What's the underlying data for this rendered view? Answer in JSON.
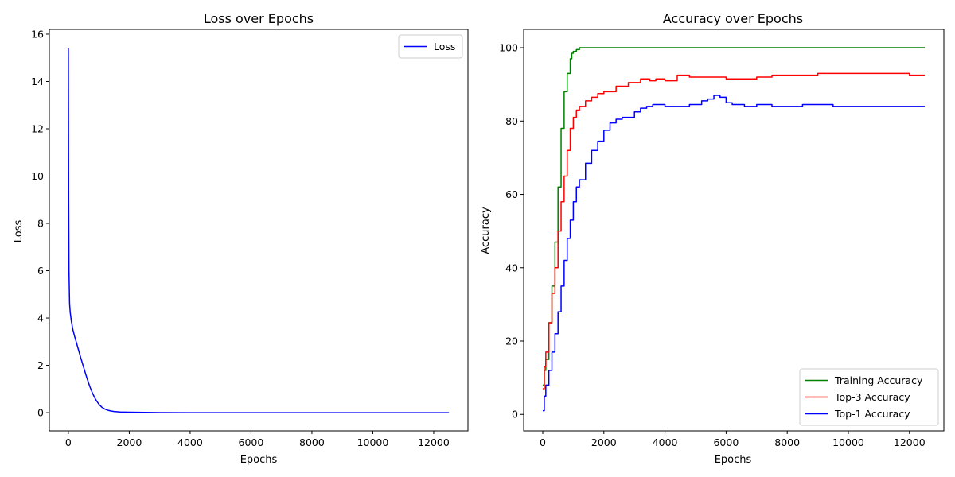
{
  "chart_data": [
    {
      "type": "line",
      "title": "Loss over Epochs",
      "xlabel": "Epochs",
      "ylabel": "Loss",
      "xlim": [
        -625,
        13125
      ],
      "ylim": [
        -0.77,
        16.2
      ],
      "xticks": [
        0,
        2000,
        4000,
        6000,
        8000,
        10000,
        12000
      ],
      "yticks": [
        0,
        2,
        4,
        6,
        8,
        10,
        12,
        14,
        16
      ],
      "grid": false,
      "legend": "upper right",
      "series": [
        {
          "name": "Loss",
          "color": "#0000ff",
          "x": [
            0,
            10,
            20,
            40,
            60,
            100,
            150,
            200,
            300,
            400,
            500,
            600,
            700,
            800,
            900,
            1000,
            1100,
            1200,
            1300,
            1400,
            1500,
            1700,
            2000,
            2500,
            3000,
            4000,
            6000,
            8000,
            10000,
            12500
          ],
          "y": [
            15.4,
            9.0,
            6.0,
            4.6,
            4.25,
            3.85,
            3.5,
            3.25,
            2.8,
            2.35,
            1.92,
            1.5,
            1.12,
            0.8,
            0.55,
            0.36,
            0.23,
            0.15,
            0.1,
            0.07,
            0.05,
            0.03,
            0.02,
            0.01,
            0.005,
            0.0,
            0.0,
            0.0,
            0.0,
            0.0
          ]
        }
      ]
    },
    {
      "type": "line",
      "title": "Accuracy over Epochs",
      "xlabel": "Epochs",
      "ylabel": "Accuracy",
      "xlim": [
        -625,
        13125
      ],
      "ylim": [
        -4.5,
        105
      ],
      "xticks": [
        0,
        2000,
        4000,
        6000,
        8000,
        10000,
        12000
      ],
      "yticks": [
        0,
        20,
        40,
        60,
        80,
        100
      ],
      "grid": false,
      "legend": "lower right",
      "series": [
        {
          "name": "Training Accuracy",
          "color": "#008000",
          "x": [
            0,
            50,
            100,
            200,
            300,
            400,
            500,
            600,
            700,
            800,
            900,
            950,
            1000,
            1100,
            1200,
            1300,
            2000,
            4000,
            8000,
            12500
          ],
          "y": [
            8,
            12,
            15,
            25,
            35,
            47,
            62,
            78,
            88,
            93,
            97,
            98.5,
            99,
            99.5,
            100,
            100,
            100,
            100,
            100,
            100
          ]
        },
        {
          "name": "Top-3 Accuracy",
          "color": "#ff0000",
          "x": [
            0,
            50,
            100,
            200,
            300,
            400,
            500,
            600,
            700,
            800,
            900,
            1000,
            1100,
            1200,
            1400,
            1600,
            1800,
            2000,
            2400,
            2800,
            3200,
            3500,
            3700,
            4000,
            4400,
            4800,
            5200,
            5600,
            6000,
            6500,
            7000,
            7500,
            8000,
            8700,
            9000,
            10000,
            11000,
            11700,
            12000,
            12500
          ],
          "y": [
            7,
            13,
            17,
            25,
            33,
            40,
            50,
            58,
            65,
            72,
            78,
            81,
            83,
            84,
            85.5,
            86.5,
            87.5,
            88,
            89.5,
            90.5,
            91.5,
            91,
            91.5,
            91,
            92.5,
            92,
            92,
            92,
            91.5,
            91.5,
            92,
            92.5,
            92.5,
            92.5,
            93,
            93,
            93,
            93,
            92.5,
            92.5
          ]
        },
        {
          "name": "Top-1 Accuracy",
          "color": "#0000ff",
          "x": [
            0,
            50,
            100,
            200,
            300,
            400,
            500,
            600,
            700,
            800,
            900,
            1000,
            1100,
            1200,
            1400,
            1600,
            1800,
            2000,
            2200,
            2400,
            2600,
            2800,
            3000,
            3200,
            3400,
            3600,
            3800,
            4000,
            4400,
            4800,
            5200,
            5400,
            5600,
            5800,
            6000,
            6200,
            6600,
            7000,
            7500,
            8000,
            8500,
            9000,
            9500,
            10000,
            10500,
            11000,
            12000,
            12500
          ],
          "y": [
            1,
            5,
            8,
            12,
            17,
            22,
            28,
            35,
            42,
            48,
            53,
            58,
            62,
            64,
            68.5,
            72,
            74.5,
            77.5,
            79.5,
            80.5,
            81,
            81,
            82.5,
            83.5,
            84,
            84.5,
            84.5,
            84,
            84,
            84.5,
            85.5,
            86,
            87,
            86.5,
            85,
            84.5,
            84,
            84.5,
            84,
            84,
            84.5,
            84.5,
            84,
            84,
            84,
            84,
            84,
            84
          ]
        }
      ]
    }
  ]
}
